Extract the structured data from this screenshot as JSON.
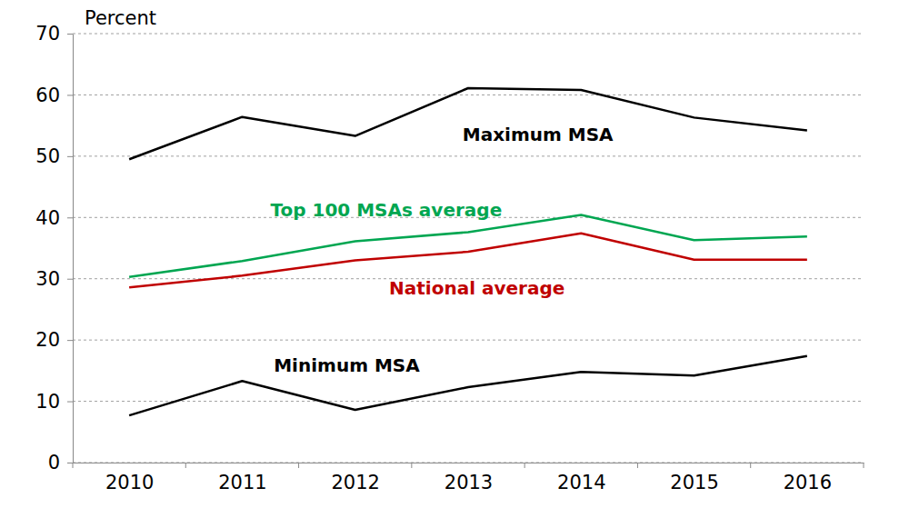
{
  "chart_data": {
    "type": "line",
    "y_axis_label": "Percent",
    "categories": [
      "2010",
      "2011",
      "2012",
      "2013",
      "2014",
      "2015",
      "2016"
    ],
    "series": [
      {
        "name": "Maximum MSA",
        "color": "#000000",
        "values": [
          49.5,
          56.4,
          53.3,
          61.1,
          60.8,
          56.3,
          54.2
        ]
      },
      {
        "name": "Top 100 MSAs average",
        "color": "#00a651",
        "values": [
          30.3,
          32.9,
          36.1,
          37.6,
          40.4,
          36.3,
          36.9
        ]
      },
      {
        "name": "National average",
        "color": "#c00000",
        "values": [
          28.6,
          30.5,
          33.0,
          34.4,
          37.4,
          33.1,
          33.1
        ]
      },
      {
        "name": "Minimum MSA",
        "color": "#000000",
        "values": [
          7.7,
          13.3,
          8.6,
          12.3,
          14.8,
          14.2,
          17.4
        ]
      }
    ],
    "ylim": [
      0,
      70
    ],
    "yticks": [
      0,
      10,
      20,
      30,
      40,
      50,
      60,
      70
    ],
    "grid": true
  }
}
